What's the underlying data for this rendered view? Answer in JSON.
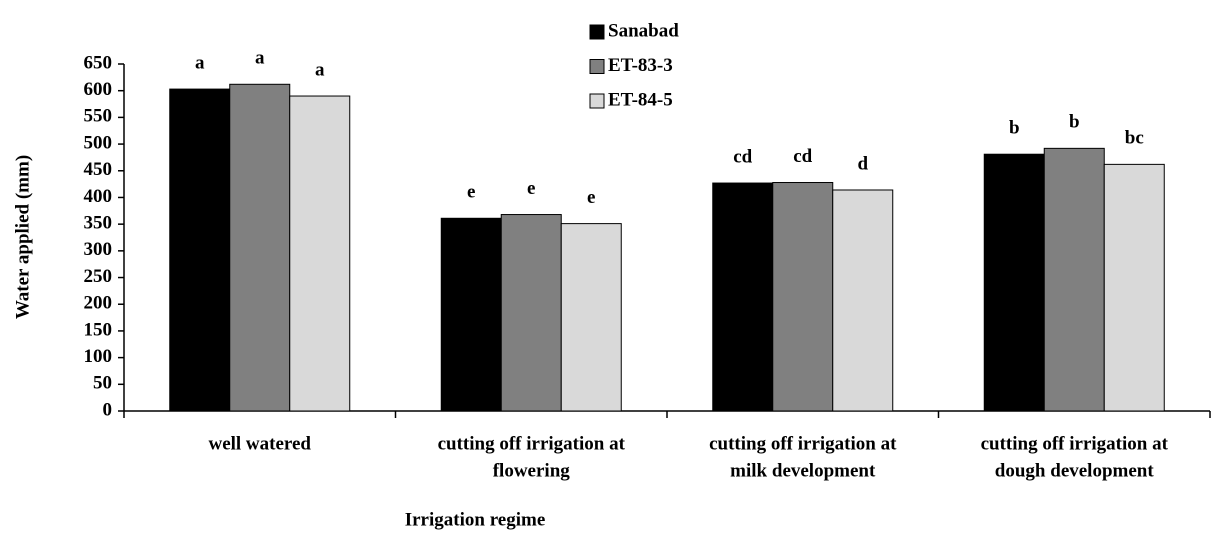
{
  "chart_data": {
    "type": "bar",
    "y_label": "Water applied (mm)",
    "x_label": "Irrigation regime",
    "categories": [
      [
        "well watered"
      ],
      [
        "cutting off irrigation at",
        "flowering"
      ],
      [
        "cutting off  irrigation at",
        "milk development"
      ],
      [
        "cutting off  irrigation at",
        "dough development"
      ]
    ],
    "series": [
      {
        "name": "Sanabad",
        "color": "#000000",
        "values": [
          603,
          361,
          427,
          481
        ],
        "letters": [
          "a",
          "e",
          "cd",
          "b"
        ]
      },
      {
        "name": "ET-83-3",
        "color": "#808080",
        "values": [
          612,
          368,
          428,
          492
        ],
        "letters": [
          "a",
          "e",
          "cd",
          "b"
        ]
      },
      {
        "name": "ET-84-5",
        "color": "#d9d9d9",
        "values": [
          590,
          351,
          414,
          462
        ],
        "letters": [
          "a",
          "e",
          "d",
          "bc"
        ]
      }
    ],
    "ylim": [
      0,
      650
    ],
    "yticks": [
      0,
      50,
      100,
      150,
      200,
      250,
      300,
      350,
      400,
      450,
      500,
      550,
      600,
      650
    ],
    "grid": false
  }
}
